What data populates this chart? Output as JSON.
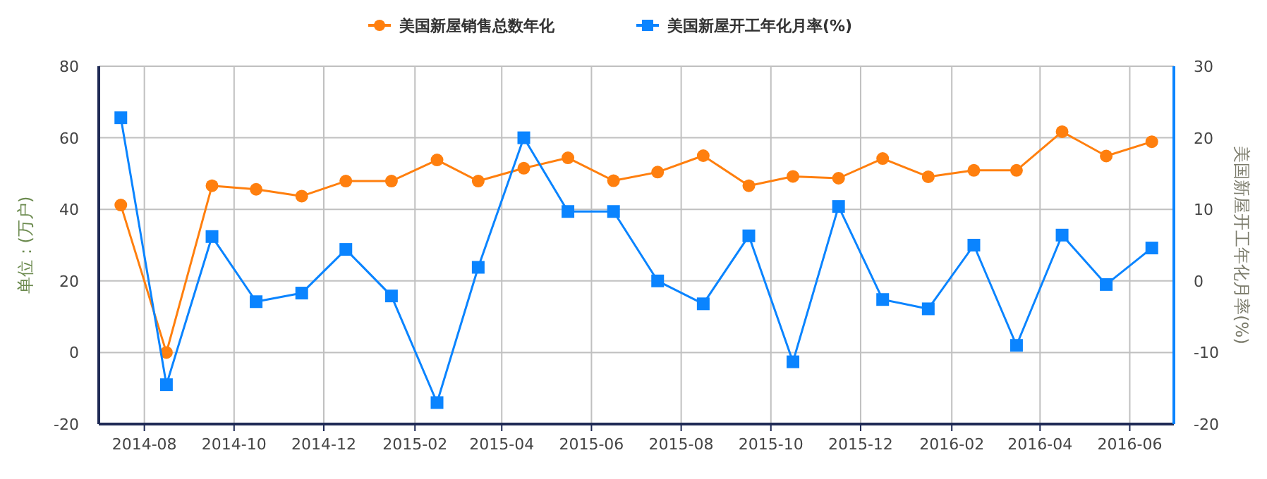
{
  "chart_data": {
    "type": "line",
    "ylabel": "单位：(万户)",
    "y2label": "美国新屋开工年化月率(%)",
    "x": [
      "2014-07-16",
      "2014-08-16",
      "2014-09-16",
      "2014-10-16",
      "2014-11-16",
      "2014-12-16",
      "2015-01-16",
      "2015-02-16",
      "2015-03-16",
      "2015-04-16",
      "2015-05-16",
      "2015-06-16",
      "2015-07-16",
      "2015-08-16",
      "2015-09-16",
      "2015-10-16",
      "2015-11-16",
      "2015-12-16",
      "2016-01-16",
      "2016-02-16",
      "2016-03-16",
      "2016-04-16",
      "2016-05-16",
      "2016-06-16"
    ],
    "xlim": [
      "2014-07-01",
      "2016-07-01"
    ],
    "xticks": [
      {
        "value": "2014-08-01",
        "label": "2014-08"
      },
      {
        "value": "2014-10-01",
        "label": "2014-10"
      },
      {
        "value": "2014-12-01",
        "label": "2014-12"
      },
      {
        "value": "2015-02-01",
        "label": "2015-02"
      },
      {
        "value": "2015-04-01",
        "label": "2015-04"
      },
      {
        "value": "2015-06-01",
        "label": "2015-06"
      },
      {
        "value": "2015-08-01",
        "label": "2015-08"
      },
      {
        "value": "2015-10-01",
        "label": "2015-10"
      },
      {
        "value": "2015-12-01",
        "label": "2015-12"
      },
      {
        "value": "2016-02-01",
        "label": "2016-02"
      },
      {
        "value": "2016-04-01",
        "label": "2016-04"
      },
      {
        "value": "2016-06-01",
        "label": "2016-06"
      }
    ],
    "ylim": [
      -20,
      80
    ],
    "yticks": [
      -20,
      0,
      20,
      40,
      60,
      80
    ],
    "y2lim": [
      -20,
      30
    ],
    "y2ticks": [
      -20,
      -10,
      0,
      10,
      20,
      30
    ],
    "grid": true,
    "legend": "top",
    "series": [
      {
        "name": "美国新屋销售总数年化",
        "color": "#ff7f0e",
        "marker": "circle",
        "values": [
          41.2,
          0,
          46.6,
          45.6,
          43.7,
          47.9,
          47.9,
          53.8,
          47.9,
          51.5,
          54.4,
          48.0,
          50.4,
          55.0,
          46.6,
          49.2,
          48.7,
          54.2,
          49.1,
          50.9,
          50.9,
          61.7,
          54.9,
          58.9
        ]
      },
      {
        "name": "美国新屋开工年化月率(%)",
        "color": "#0a84ff",
        "marker": "square",
        "axis": "y2",
        "values": [
          22.8,
          -14.5,
          6.2,
          -2.9,
          -1.7,
          4.4,
          -2.1,
          -17.0,
          1.9,
          20.0,
          9.7,
          9.7,
          0.0,
          -3.2,
          6.3,
          -11.3,
          10.4,
          -2.6,
          -3.9,
          5.0,
          -9.0,
          6.4,
          -0.5,
          4.6
        ]
      }
    ]
  }
}
